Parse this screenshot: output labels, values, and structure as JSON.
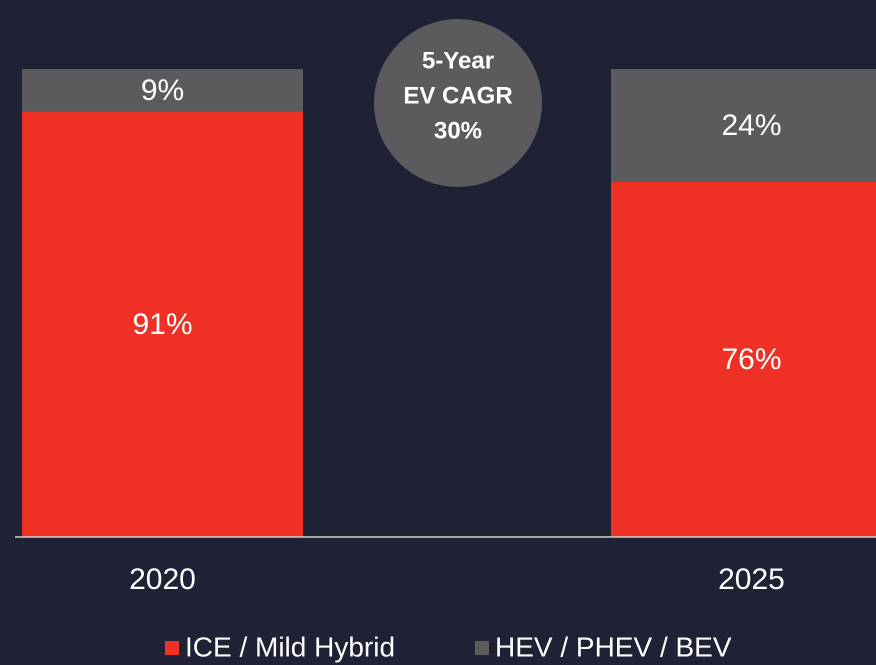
{
  "chart_data": {
    "type": "stacked_bar",
    "categories": [
      "2020",
      "2025"
    ],
    "series": [
      {
        "name": "ICE / Mild Hybrid",
        "color": "#ee3124",
        "values": [
          91,
          76
        ],
        "value_labels": [
          "91%",
          "76%"
        ]
      },
      {
        "name": "HEV / PHEV / BEV",
        "color": "#5b5b5d",
        "values": [
          9,
          24
        ],
        "value_labels": [
          "9%",
          "24%"
        ]
      }
    ],
    "ylim": [
      0,
      100
    ],
    "annotation": [
      "5-Year",
      "EV CAGR",
      "30%"
    ],
    "legend": "bottom"
  }
}
